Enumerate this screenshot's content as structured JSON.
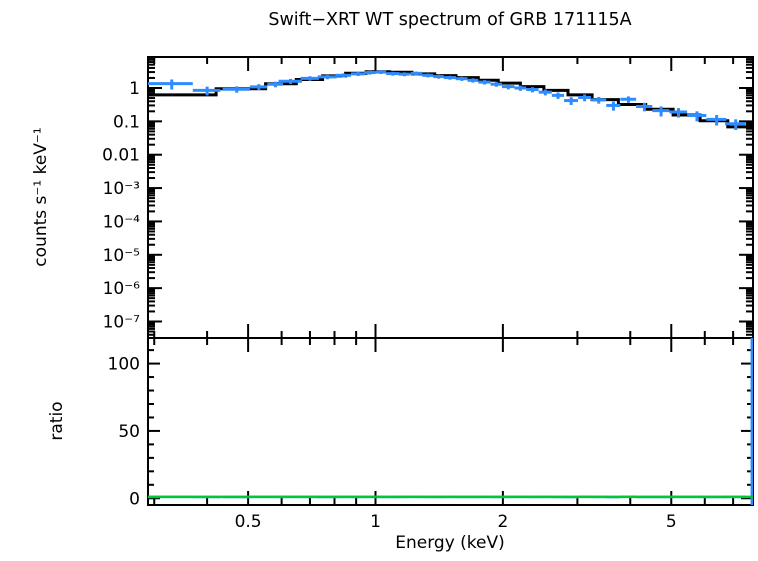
{
  "figure": {
    "title": "Swift−XRT WT spectrum of GRB 171115A",
    "background_color": "#ffffff",
    "frame_color": "#000000"
  },
  "chart_data": {
    "type": "scatter",
    "subtype": "two-panel x-ray spectrum with stepped model and ratio",
    "title": "Swift−XRT WT spectrum of GRB 171115A",
    "xlabel": "Energy (keV)",
    "xscale": "log",
    "xlim": [
      0.29,
      7.8
    ],
    "x_ticks": {
      "major": [
        0.5,
        1,
        2,
        5
      ],
      "major_labels": [
        "0.5",
        "1",
        "2",
        "5"
      ],
      "minor": [
        0.3,
        0.4,
        0.6,
        0.7,
        0.8,
        0.9,
        3,
        4,
        6,
        7
      ]
    },
    "legend": "none",
    "grid": false,
    "panels": [
      {
        "name": "spectrum",
        "ylabel": "counts s⁻¹ keV⁻¹",
        "yscale": "log",
        "ylim": [
          3.2e-08,
          8.5
        ],
        "y_ticks": {
          "major": [
            1,
            0.1,
            0.01,
            0.001,
            0.0001,
            1e-05,
            1e-06,
            1e-07
          ],
          "major_labels": [
            "1",
            "0.1",
            "0.01",
            "10⁻³",
            "10⁻⁴",
            "10⁻⁵",
            "10⁻⁶",
            "10⁻⁷"
          ]
        },
        "series": [
          {
            "name": "observed-data",
            "style": "errorbar",
            "color": "#2f8cff",
            "x": [
              0.33,
              0.4,
              0.47,
              0.53,
              0.58,
              0.63,
              0.7,
              0.77,
              0.84,
              0.91,
              0.97,
              1.03,
              1.1,
              1.17,
              1.25,
              1.33,
              1.41,
              1.5,
              1.6,
              1.7,
              1.81,
              1.93,
              2.06,
              2.2,
              2.35,
              2.52,
              2.7,
              2.9,
              3.12,
              3.37,
              3.65,
              3.96,
              4.32,
              4.73,
              5.2,
              5.75,
              6.4,
              7.1
            ],
            "xerr": [
              0.04,
              0.03,
              0.035,
              0.025,
              0.025,
              0.04,
              0.035,
              0.04,
              0.035,
              0.035,
              0.03,
              0.03,
              0.04,
              0.035,
              0.04,
              0.04,
              0.04,
              0.05,
              0.05,
              0.05,
              0.06,
              0.06,
              0.07,
              0.07,
              0.08,
              0.09,
              0.09,
              0.11,
              0.11,
              0.14,
              0.14,
              0.17,
              0.19,
              0.22,
              0.25,
              0.3,
              0.35,
              0.4
            ],
            "y": [
              1.35,
              0.85,
              0.92,
              1.08,
              1.3,
              1.6,
              1.95,
              2.15,
              2.4,
              2.65,
              2.9,
              3.0,
              2.7,
              2.6,
              2.75,
              2.4,
              2.2,
              2.05,
              1.9,
              1.7,
              1.5,
              1.3,
              1.1,
              1.0,
              0.9,
              0.75,
              0.6,
              0.42,
              0.52,
              0.44,
              0.3,
              0.46,
              0.28,
              0.21,
              0.19,
              0.15,
              0.115,
              0.085
            ],
            "yerr": [
              0.45,
              0.25,
              0.2,
              0.22,
              0.25,
              0.28,
              0.3,
              0.32,
              0.34,
              0.36,
              0.38,
              0.38,
              0.36,
              0.35,
              0.35,
              0.32,
              0.3,
              0.28,
              0.27,
              0.25,
              0.23,
              0.21,
              0.19,
              0.18,
              0.16,
              0.15,
              0.13,
              0.11,
              0.12,
              0.1,
              0.09,
              0.1,
              0.08,
              0.07,
              0.06,
              0.05,
              0.04,
              0.03
            ]
          },
          {
            "name": "model",
            "style": "step-histogram",
            "color": "#000000",
            "bin_edges": [
              0.29,
              0.42,
              0.55,
              0.65,
              0.75,
              0.85,
              0.95,
              1.08,
              1.22,
              1.38,
              1.55,
              1.75,
              1.95,
              2.2,
              2.5,
              2.85,
              3.25,
              3.75,
              4.35,
              5.05,
              5.85,
              6.8,
              7.8
            ],
            "values": [
              0.62,
              0.95,
              1.35,
              1.8,
              2.3,
              2.75,
              3.05,
              2.95,
              2.65,
              2.35,
              2.05,
              1.7,
              1.4,
              1.1,
              0.85,
              0.62,
              0.45,
              0.32,
              0.23,
              0.155,
              0.105,
              0.068
            ]
          }
        ]
      },
      {
        "name": "ratio",
        "ylabel": "ratio",
        "yscale": "linear",
        "ylim": [
          -5,
          119
        ],
        "y_ticks": {
          "major": [
            0,
            50,
            100
          ],
          "major_labels": [
            "0",
            "50",
            "100"
          ],
          "minor_step": 10
        },
        "series": [
          {
            "name": "ratio-data",
            "style": "errorbar",
            "color": "#2f8cff",
            "x": [
              0.33,
              0.4,
              0.47,
              0.53,
              0.58,
              0.63,
              0.7,
              0.77,
              0.84,
              0.91,
              0.97,
              1.03,
              1.1,
              1.17,
              1.25,
              1.33,
              1.41,
              1.5,
              1.6,
              1.7,
              1.81,
              1.93,
              2.06,
              2.2,
              2.35,
              2.52,
              2.7,
              2.9,
              3.12,
              3.37,
              3.65,
              3.96,
              4.32,
              4.73,
              5.2,
              5.75,
              6.4,
              7.1
            ],
            "xerr": [
              0.04,
              0.03,
              0.035,
              0.025,
              0.025,
              0.04,
              0.035,
              0.04,
              0.035,
              0.035,
              0.03,
              0.03,
              0.04,
              0.035,
              0.04,
              0.04,
              0.04,
              0.05,
              0.05,
              0.05,
              0.06,
              0.06,
              0.07,
              0.07,
              0.08,
              0.09,
              0.09,
              0.11,
              0.11,
              0.14,
              0.14,
              0.17,
              0.19,
              0.22,
              0.25,
              0.3,
              0.35,
              0.4
            ],
            "y": [
              1.05,
              0.92,
              0.98,
              1.03,
              1.01,
              0.99,
              1.04,
              0.97,
              1.02,
              1.0,
              1.03,
              0.98,
              0.95,
              1.01,
              1.06,
              0.99,
              0.97,
              1.02,
              1.0,
              0.98,
              1.03,
              0.96,
              1.01,
              1.04,
              0.99,
              1.02,
              0.95,
              0.9,
              1.08,
              1.01,
              0.88,
              1.12,
              0.97,
              0.94,
              1.02,
              0.99,
              0.96,
              1.05
            ],
            "yerr": 0.35,
            "edge_point": {
              "x": 7.75,
              "xerr": 0.05,
              "y": 1,
              "yerr": 150
            }
          },
          {
            "name": "ratio-model",
            "style": "hline",
            "color": "#00c832",
            "y": 1
          }
        ]
      }
    ]
  }
}
